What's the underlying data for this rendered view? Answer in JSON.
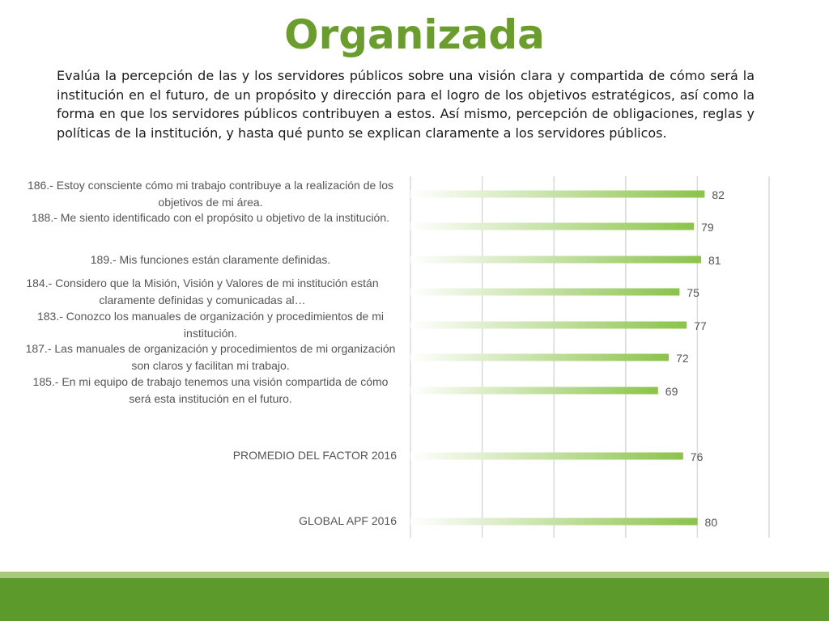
{
  "slide": {
    "title": "Organizada",
    "description": "Evalúa la percepción de las y los servidores públicos sobre una visión clara y compartida de cómo será la institución en el futuro, de un propósito y dirección para el logro de los objetivos estratégicos, así como la forma en que los servidores públicos contribuyen a estos. Así mismo, percepción de obligaciones, reglas y políticas de la institución, y hasta qué punto se explican claramente a los servidores públicos."
  },
  "colors": {
    "accent": "#6a9c2e",
    "bar": "#8bc34a",
    "bar_fade": "#ffffff",
    "label": "#555555",
    "grid": "#d9d9d9",
    "footer_band": "#5c9a2c",
    "footer_stripe": "#a6c97a"
  },
  "chart_data": {
    "type": "bar",
    "orientation": "horizontal",
    "categories": [
      "186.- Estoy consciente cómo mi trabajo contribuye a la realización de los objetivos de mi área.",
      "188.- Me siento identificado con el propósito u objetivo de la institución.",
      "189.- Mis funciones están claramente definidas.",
      "184.- Considero que la Misión, Visión y Valores de mi institución están claramente definidas y comunicadas al…",
      "183.- Conozco los manuales de organización y procedimientos de mi institución.",
      "187.- Las manuales de organización y procedimientos de mi organización son claros y facilitan mi trabajo.",
      "185.- En mi equipo de trabajo tenemos una visión compartida de cómo será esta institución en el futuro.",
      "PROMEDIO DEL FACTOR   2016",
      "GLOBAL APF   2016"
    ],
    "values": [
      82,
      79,
      81,
      75,
      77,
      72,
      69,
      76,
      80
    ],
    "data_labels": [
      "82",
      "79",
      "81",
      "75",
      "77",
      "72",
      "69",
      "76",
      "80"
    ],
    "grid": true,
    "legend": "none"
  }
}
